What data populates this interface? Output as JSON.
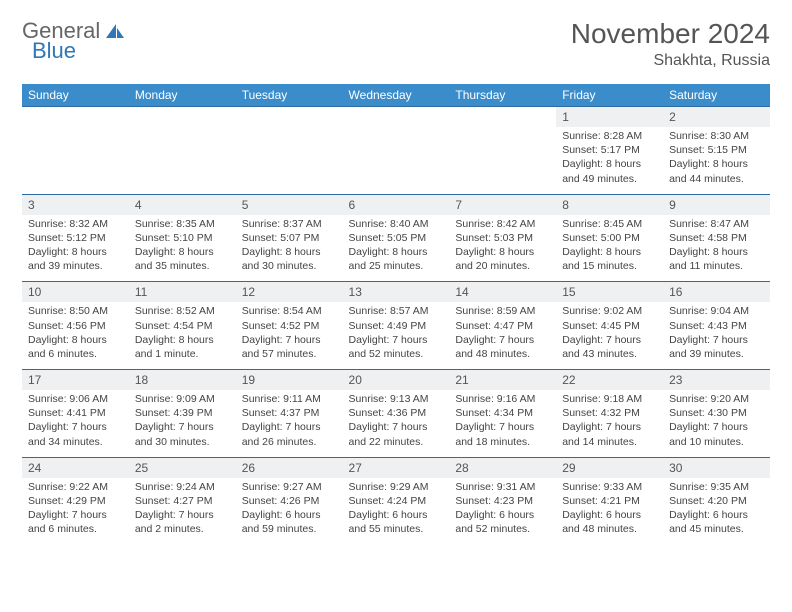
{
  "logo": {
    "text1": "General",
    "text2": "Blue"
  },
  "title": "November 2024",
  "location": "Shakhta, Russia",
  "colors": {
    "header_bg": "#3b8ccb",
    "header_text": "#ffffff",
    "dayrow_bg": "#eef0f2",
    "dayrow_border": "#2f6aa0",
    "body_text": "#444444",
    "logo_blue": "#2f77b7"
  },
  "weekdays": [
    "Sunday",
    "Monday",
    "Tuesday",
    "Wednesday",
    "Thursday",
    "Friday",
    "Saturday"
  ],
  "weeks": [
    {
      "days": [
        null,
        null,
        null,
        null,
        null,
        {
          "n": "1",
          "sunrise": "8:28 AM",
          "sunset": "5:17 PM",
          "daylight": "8 hours and 49 minutes."
        },
        {
          "n": "2",
          "sunrise": "8:30 AM",
          "sunset": "5:15 PM",
          "daylight": "8 hours and 44 minutes."
        }
      ]
    },
    {
      "days": [
        {
          "n": "3",
          "sunrise": "8:32 AM",
          "sunset": "5:12 PM",
          "daylight": "8 hours and 39 minutes."
        },
        {
          "n": "4",
          "sunrise": "8:35 AM",
          "sunset": "5:10 PM",
          "daylight": "8 hours and 35 minutes."
        },
        {
          "n": "5",
          "sunrise": "8:37 AM",
          "sunset": "5:07 PM",
          "daylight": "8 hours and 30 minutes."
        },
        {
          "n": "6",
          "sunrise": "8:40 AM",
          "sunset": "5:05 PM",
          "daylight": "8 hours and 25 minutes."
        },
        {
          "n": "7",
          "sunrise": "8:42 AM",
          "sunset": "5:03 PM",
          "daylight": "8 hours and 20 minutes."
        },
        {
          "n": "8",
          "sunrise": "8:45 AM",
          "sunset": "5:00 PM",
          "daylight": "8 hours and 15 minutes."
        },
        {
          "n": "9",
          "sunrise": "8:47 AM",
          "sunset": "4:58 PM",
          "daylight": "8 hours and 11 minutes."
        }
      ]
    },
    {
      "days": [
        {
          "n": "10",
          "sunrise": "8:50 AM",
          "sunset": "4:56 PM",
          "daylight": "8 hours and 6 minutes."
        },
        {
          "n": "11",
          "sunrise": "8:52 AM",
          "sunset": "4:54 PM",
          "daylight": "8 hours and 1 minute."
        },
        {
          "n": "12",
          "sunrise": "8:54 AM",
          "sunset": "4:52 PM",
          "daylight": "7 hours and 57 minutes."
        },
        {
          "n": "13",
          "sunrise": "8:57 AM",
          "sunset": "4:49 PM",
          "daylight": "7 hours and 52 minutes."
        },
        {
          "n": "14",
          "sunrise": "8:59 AM",
          "sunset": "4:47 PM",
          "daylight": "7 hours and 48 minutes."
        },
        {
          "n": "15",
          "sunrise": "9:02 AM",
          "sunset": "4:45 PM",
          "daylight": "7 hours and 43 minutes."
        },
        {
          "n": "16",
          "sunrise": "9:04 AM",
          "sunset": "4:43 PM",
          "daylight": "7 hours and 39 minutes."
        }
      ]
    },
    {
      "days": [
        {
          "n": "17",
          "sunrise": "9:06 AM",
          "sunset": "4:41 PM",
          "daylight": "7 hours and 34 minutes."
        },
        {
          "n": "18",
          "sunrise": "9:09 AM",
          "sunset": "4:39 PM",
          "daylight": "7 hours and 30 minutes."
        },
        {
          "n": "19",
          "sunrise": "9:11 AM",
          "sunset": "4:37 PM",
          "daylight": "7 hours and 26 minutes."
        },
        {
          "n": "20",
          "sunrise": "9:13 AM",
          "sunset": "4:36 PM",
          "daylight": "7 hours and 22 minutes."
        },
        {
          "n": "21",
          "sunrise": "9:16 AM",
          "sunset": "4:34 PM",
          "daylight": "7 hours and 18 minutes."
        },
        {
          "n": "22",
          "sunrise": "9:18 AM",
          "sunset": "4:32 PM",
          "daylight": "7 hours and 14 minutes."
        },
        {
          "n": "23",
          "sunrise": "9:20 AM",
          "sunset": "4:30 PM",
          "daylight": "7 hours and 10 minutes."
        }
      ]
    },
    {
      "days": [
        {
          "n": "24",
          "sunrise": "9:22 AM",
          "sunset": "4:29 PM",
          "daylight": "7 hours and 6 minutes."
        },
        {
          "n": "25",
          "sunrise": "9:24 AM",
          "sunset": "4:27 PM",
          "daylight": "7 hours and 2 minutes."
        },
        {
          "n": "26",
          "sunrise": "9:27 AM",
          "sunset": "4:26 PM",
          "daylight": "6 hours and 59 minutes."
        },
        {
          "n": "27",
          "sunrise": "9:29 AM",
          "sunset": "4:24 PM",
          "daylight": "6 hours and 55 minutes."
        },
        {
          "n": "28",
          "sunrise": "9:31 AM",
          "sunset": "4:23 PM",
          "daylight": "6 hours and 52 minutes."
        },
        {
          "n": "29",
          "sunrise": "9:33 AM",
          "sunset": "4:21 PM",
          "daylight": "6 hours and 48 minutes."
        },
        {
          "n": "30",
          "sunrise": "9:35 AM",
          "sunset": "4:20 PM",
          "daylight": "6 hours and 45 minutes."
        }
      ]
    }
  ]
}
